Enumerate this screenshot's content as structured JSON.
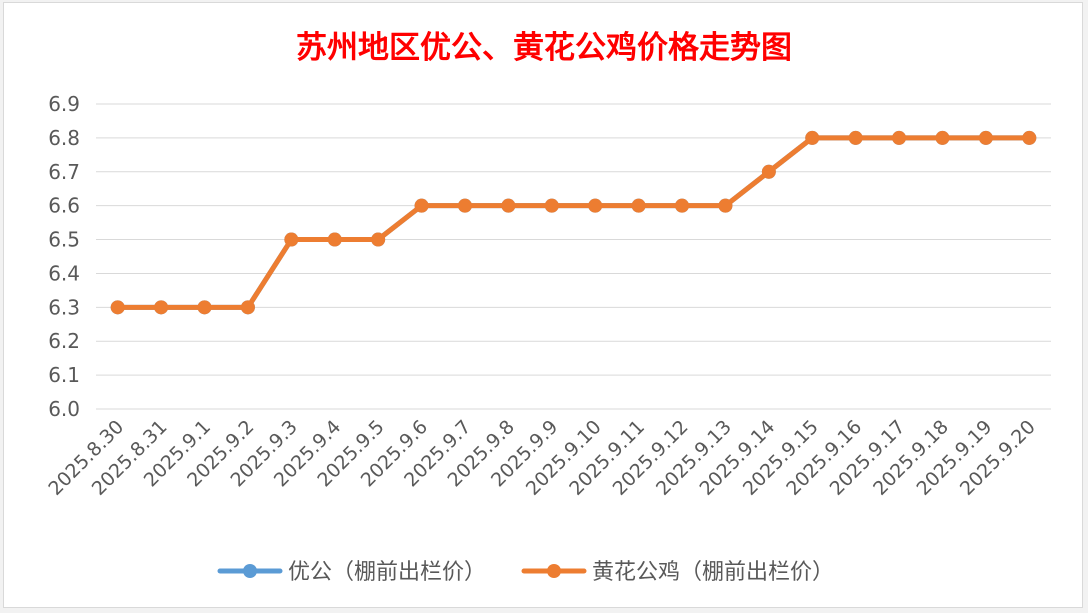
{
  "chart_data": {
    "type": "line",
    "title": "苏州地区优公、黄花公鸡价格走势图",
    "xlabel": "",
    "ylabel": "",
    "ylim": [
      6.0,
      6.9
    ],
    "yticks": [
      "6.0",
      "6.1",
      "6.2",
      "6.3",
      "6.4",
      "6.5",
      "6.6",
      "6.7",
      "6.8",
      "6.9"
    ],
    "grid": true,
    "legend_position": "bottom",
    "categories": [
      "2025.8.30",
      "2025.8.31",
      "2025.9.1",
      "2025.9.2",
      "2025.9.3",
      "2025.9.4",
      "2025.9.5",
      "2025.9.6",
      "2025.9.7",
      "2025.9.8",
      "2025.9.9",
      "2025.9.10",
      "2025.9.11",
      "2025.9.12",
      "2025.9.13",
      "2025.9.14",
      "2025.9.15",
      "2025.9.16",
      "2025.9.17",
      "2025.9.18",
      "2025.9.19",
      "2025.9.20"
    ],
    "series": [
      {
        "name": "优公（棚前出栏价）",
        "color": "#5b9bd5",
        "values": [
          6.3,
          6.3,
          6.3,
          6.3,
          6.5,
          6.5,
          6.5,
          6.6,
          6.6,
          6.6,
          6.6,
          6.6,
          6.6,
          6.6,
          6.6,
          6.7,
          6.8,
          6.8,
          6.8,
          6.8,
          6.8,
          6.8
        ]
      },
      {
        "name": "黄花公鸡（棚前出栏价）",
        "color": "#ed7d31",
        "values": [
          6.3,
          6.3,
          6.3,
          6.3,
          6.5,
          6.5,
          6.5,
          6.6,
          6.6,
          6.6,
          6.6,
          6.6,
          6.6,
          6.6,
          6.6,
          6.7,
          6.8,
          6.8,
          6.8,
          6.8,
          6.8,
          6.8
        ]
      }
    ]
  },
  "colors": {
    "title": "#ff0000",
    "axis_text": "#595959",
    "gridline": "#d9d9d9"
  }
}
